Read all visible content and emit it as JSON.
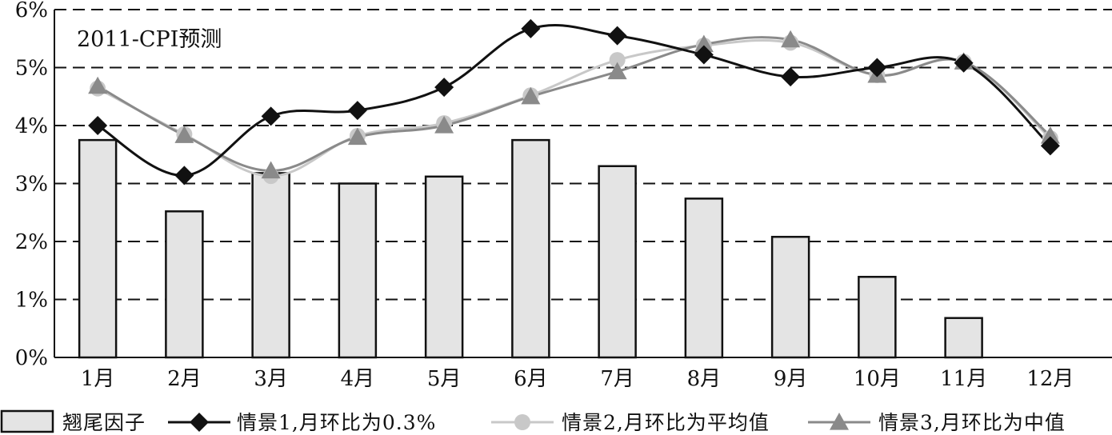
{
  "chart_data": {
    "type": "bar",
    "title": "2011-CPI预测",
    "xlabel": "",
    "ylabel": "",
    "categories": [
      "1月",
      "2月",
      "3月",
      "4月",
      "5月",
      "6月",
      "7月",
      "8月",
      "9月",
      "10月",
      "11月",
      "12月"
    ],
    "ylim": [
      0,
      6
    ],
    "y_ticks": [
      0,
      1,
      2,
      3,
      4,
      5,
      6
    ],
    "y_tick_labels": [
      "0%",
      "1%",
      "2%",
      "3%",
      "4%",
      "5%",
      "6%"
    ],
    "grid": "horizontal-dashed",
    "legend_position": "bottom",
    "series": [
      {
        "name": "翘尾因子",
        "kind": "bar",
        "color": "#e4e4e4",
        "values": [
          3.75,
          2.52,
          3.18,
          3.0,
          3.12,
          3.75,
          3.3,
          2.74,
          2.08,
          1.39,
          0.68,
          null
        ]
      },
      {
        "name": "情景1,月环比为0.3%",
        "kind": "line",
        "marker": "diamond",
        "color": "#111111",
        "values": [
          4.0,
          3.14,
          4.16,
          4.26,
          4.66,
          5.67,
          5.55,
          5.22,
          4.84,
          5.0,
          5.08,
          3.65
        ]
      },
      {
        "name": "情景2,月环比为平均值",
        "kind": "line",
        "marker": "circle",
        "color": "#c8c8c8",
        "values": [
          4.64,
          3.85,
          3.13,
          3.82,
          4.04,
          4.52,
          5.13,
          5.38,
          5.43,
          4.87,
          5.1,
          3.78
        ]
      },
      {
        "name": "情景3,月环比为中值",
        "kind": "line",
        "marker": "triangle",
        "color": "#8a8a8a",
        "values": [
          4.68,
          3.83,
          3.22,
          3.8,
          4.0,
          4.5,
          4.93,
          5.4,
          5.48,
          4.87,
          5.1,
          3.82
        ]
      }
    ]
  }
}
